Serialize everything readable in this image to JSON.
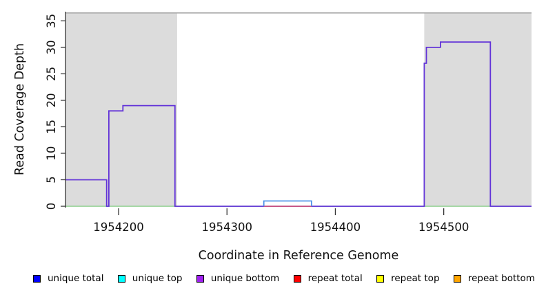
{
  "chart_data": {
    "type": "line",
    "title": "",
    "xlabel": "Coordinate in Reference Genome",
    "ylabel": "Read Coverage Depth",
    "xlim": [
      1954151,
      1954581
    ],
    "ylim": [
      0,
      36.6
    ],
    "x_ticks": [
      1954200,
      1954300,
      1954400,
      1954500
    ],
    "y_ticks": [
      0,
      5,
      10,
      15,
      20,
      25,
      30,
      35
    ],
    "grid": false,
    "background_color": "#ffffff",
    "axis_color": "#333333",
    "top_border_color": "#a8a8a8",
    "shaded_regions": [
      {
        "name": "uncovered-region-left",
        "x0": 1954151,
        "x1": 1954254,
        "color": "#dcdcdc"
      },
      {
        "name": "uncovered-region-right",
        "x0": 1954482,
        "x1": 1954581,
        "color": "#dcdcdc"
      }
    ],
    "series": [
      {
        "name": "zero-baseline-green",
        "color": "#8cce8c",
        "width": 1.6,
        "points": [
          [
            1954151,
            0
          ],
          [
            1954581,
            0
          ]
        ]
      },
      {
        "name": "unique-bottom",
        "color": "#6233d8",
        "width": 1.8,
        "points": [
          [
            1954151,
            5
          ],
          [
            1954189,
            5
          ],
          [
            1954189,
            0
          ],
          [
            1954191,
            0
          ],
          [
            1954191,
            18
          ],
          [
            1954204,
            18
          ],
          [
            1954204,
            19
          ],
          [
            1954252,
            19
          ],
          [
            1954252,
            0
          ],
          [
            1954482,
            0
          ],
          [
            1954482,
            27
          ],
          [
            1954484,
            27
          ],
          [
            1954484,
            30
          ],
          [
            1954497,
            30
          ],
          [
            1954497,
            31
          ],
          [
            1954543,
            31
          ],
          [
            1954543,
            0
          ],
          [
            1954581,
            0
          ]
        ]
      },
      {
        "name": "repeat-total-baseline",
        "color": "#e05570",
        "width": 1.6,
        "points": [
          [
            1954334,
            0
          ],
          [
            1954378,
            0
          ]
        ]
      },
      {
        "name": "unique-total",
        "color": "#4a90e8",
        "width": 1.7,
        "points": [
          [
            1954334,
            0
          ],
          [
            1954334,
            1
          ],
          [
            1954378,
            1
          ],
          [
            1954378,
            0
          ]
        ]
      }
    ],
    "legend_position": "bottom",
    "legend": [
      {
        "label": "unique total",
        "color": "#0000ff"
      },
      {
        "label": "unique top",
        "color": "#00ffff"
      },
      {
        "label": "unique bottom",
        "color": "#a020f0"
      },
      {
        "label": "repeat total",
        "color": "#ff0000"
      },
      {
        "label": "repeat top",
        "color": "#ffff00"
      },
      {
        "label": "repeat bottom",
        "color": "#ffa500"
      }
    ]
  }
}
